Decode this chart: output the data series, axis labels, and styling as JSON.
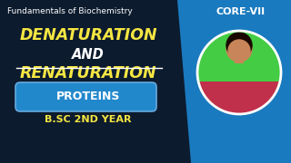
{
  "bg_dark": "#0d1b2e",
  "bg_blue_right": "#1a7abf",
  "title_small": "Fundamentals of Biochemistry",
  "title_small_color": "#ffffff",
  "title_small_fontsize": 6.5,
  "line1": "DENATURATION",
  "line2": "AND",
  "line3": "RENATURATION",
  "main_color": "#f5e642",
  "and_color": "#ffffff",
  "main_fontsize": 12.5,
  "and_fontsize": 10.5,
  "underline_color": "#ffffff",
  "core_label": "CORE-VII",
  "core_color": "#ffffff",
  "core_fontsize": 8,
  "proteins_label": "PROTEINS",
  "proteins_fontsize": 9,
  "proteins_bg": "#2288cc",
  "proteins_text_color": "#ffffff",
  "bsc_label": "B.SC 2ND YEAR",
  "bsc_color": "#f5e642",
  "bsc_fontsize": 8,
  "circle_photo_color": "#44cc44",
  "photo_dress_color": "#c0304a",
  "skin_color": "#c8855a",
  "hair_color": "#1a0800"
}
